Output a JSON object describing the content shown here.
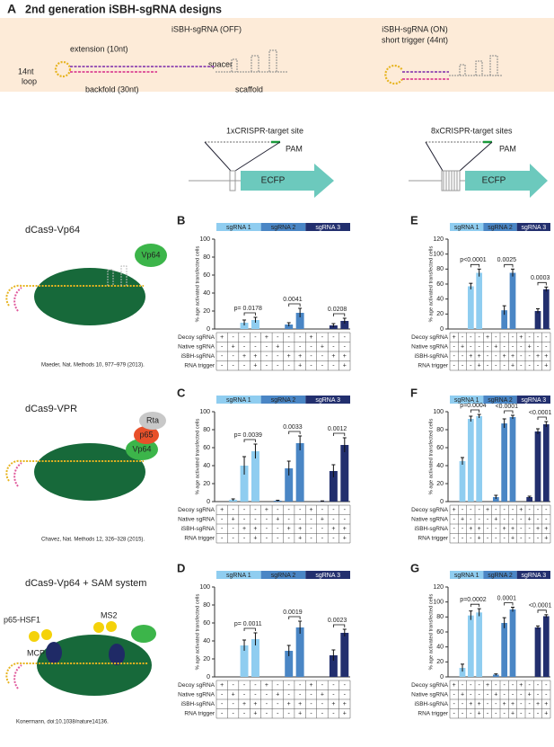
{
  "header": {
    "panel": "A",
    "title": "2nd generation iSBH-sgRNA designs"
  },
  "designs": {
    "off": {
      "title": "iSBH-sgRNA (OFF)",
      "extension": "extension (10nt)",
      "spacer": "spacer",
      "loop": [
        "14nt",
        "loop"
      ],
      "backfold": "backfold (30nt)",
      "scaffold": "scaffold"
    },
    "on": {
      "title": "iSBH-sgRNA (ON)",
      "trigger": "short trigger (44nt)"
    }
  },
  "reporters": [
    {
      "site": "1xCRISPR-target site",
      "pam": "PAM",
      "gene": "ECFP"
    },
    {
      "site": "8xCRISPR-target sites",
      "pam": "PAM",
      "gene": "ECFP"
    }
  ],
  "systems": [
    {
      "name": "dCas9-Vp64",
      "domains": [
        "Vp64"
      ],
      "citation": "Maeder, Nat. Methods 10, 977–979 (2013)."
    },
    {
      "name": "dCas9-VPR",
      "domains": [
        "Rta",
        "p65",
        "Vp64"
      ],
      "citation": "Chavez, Nat. Methods 12, 326–328 (2015)."
    },
    {
      "name": "dCas9-Vp64 + SAM system",
      "domains": [
        "p65-HSF1",
        "MS2",
        "MCP"
      ],
      "citation": "Konermann, doi:10.1038/nature14136."
    }
  ],
  "chart_data": [
    {
      "type": "bar",
      "panel": "B",
      "ylabel": "% age activated transfected cells",
      "ylim": [
        0,
        100
      ],
      "yticks": [
        0,
        20,
        40,
        60,
        80,
        100
      ],
      "series": [
        {
          "name": "sgRNA 1",
          "color": "#8fcdf0",
          "values": [
            0,
            0,
            7,
            10
          ],
          "errors": [
            0,
            0,
            3,
            3
          ]
        },
        {
          "name": "sgRNA 2",
          "color": "#4a86c5",
          "values": [
            0,
            0,
            5,
            18
          ],
          "errors": [
            0,
            0,
            2,
            5
          ]
        },
        {
          "name": "sgRNA 3",
          "color": "#222f6e",
          "values": [
            0,
            0,
            4,
            9
          ],
          "errors": [
            0,
            0,
            2,
            3
          ]
        }
      ],
      "pvalues": [
        "p= 0.0178",
        "0.0041",
        "0.0208"
      ],
      "conditions": [
        {
          "name": "Decoy sgRNA",
          "marks": [
            "+",
            "-",
            "-",
            "-",
            "+",
            "-",
            "-",
            "-",
            "+",
            "-",
            "-",
            "-"
          ]
        },
        {
          "name": "Native sgRNA",
          "marks": [
            "-",
            "+",
            "-",
            "-",
            "-",
            "+",
            "-",
            "-",
            "-",
            "+",
            "-",
            "-"
          ]
        },
        {
          "name": "iSBH-sgRNA",
          "marks": [
            "-",
            "-",
            "+",
            "+",
            "-",
            "-",
            "+",
            "+",
            "-",
            "-",
            "+",
            "+"
          ]
        },
        {
          "name": "RNA trigger",
          "marks": [
            "-",
            "-",
            "-",
            "+",
            "-",
            "-",
            "-",
            "+",
            "-",
            "-",
            "-",
            "+"
          ]
        }
      ]
    },
    {
      "type": "bar",
      "panel": "C",
      "ylabel": "% age activated transfected cells",
      "ylim": [
        0,
        100
      ],
      "yticks": [
        0,
        20,
        40,
        60,
        80,
        100
      ],
      "series": [
        {
          "name": "sgRNA 1",
          "color": "#8fcdf0",
          "values": [
            0,
            2,
            40,
            56
          ],
          "errors": [
            0,
            1,
            10,
            8
          ]
        },
        {
          "name": "sgRNA 2",
          "color": "#4a86c5",
          "values": [
            0,
            1,
            37,
            65
          ],
          "errors": [
            0,
            0.5,
            8,
            8
          ]
        },
        {
          "name": "sgRNA 3",
          "color": "#222f6e",
          "values": [
            0,
            0.5,
            34,
            63
          ],
          "errors": [
            0,
            0.3,
            7,
            8
          ]
        }
      ],
      "pvalues": [
        "p= 0.0039",
        "0.0033",
        "0.0012"
      ],
      "conditions": [
        {
          "name": "Decoy sgRNA",
          "marks": [
            "+",
            "-",
            "-",
            "-",
            "+",
            "-",
            "-",
            "-",
            "+",
            "-",
            "-",
            "-"
          ]
        },
        {
          "name": "Native sgRNA",
          "marks": [
            "-",
            "+",
            "-",
            "-",
            "-",
            "+",
            "-",
            "-",
            "-",
            "+",
            "-",
            "-"
          ]
        },
        {
          "name": "iSBH-sgRNA",
          "marks": [
            "-",
            "-",
            "+",
            "+",
            "-",
            "-",
            "+",
            "+",
            "-",
            "-",
            "+",
            "+"
          ]
        },
        {
          "name": "RNA trigger",
          "marks": [
            "-",
            "-",
            "-",
            "+",
            "-",
            "-",
            "-",
            "+",
            "-",
            "-",
            "-",
            "+"
          ]
        }
      ]
    },
    {
      "type": "bar",
      "panel": "D",
      "ylabel": "% age activated transfected cells",
      "ylim": [
        0,
        100
      ],
      "yticks": [
        0,
        20,
        40,
        60,
        80,
        100
      ],
      "series": [
        {
          "name": "sgRNA 1",
          "color": "#8fcdf0",
          "values": [
            0,
            0,
            35,
            42
          ],
          "errors": [
            0,
            0,
            6,
            7
          ]
        },
        {
          "name": "sgRNA 2",
          "color": "#4a86c5",
          "values": [
            0,
            0,
            29,
            55
          ],
          "errors": [
            0,
            0,
            6,
            7
          ]
        },
        {
          "name": "sgRNA 3",
          "color": "#222f6e",
          "values": [
            0,
            0,
            24,
            49
          ],
          "errors": [
            0,
            0,
            6,
            4
          ]
        }
      ],
      "pvalues": [
        "p= 0.0011",
        "0.0019",
        "0.0023"
      ],
      "conditions": [
        {
          "name": "Decoy sgRNA",
          "marks": [
            "+",
            "-",
            "-",
            "-",
            "+",
            "-",
            "-",
            "-",
            "+",
            "-",
            "-",
            "-"
          ]
        },
        {
          "name": "Native sgRNA",
          "marks": [
            "-",
            "+",
            "-",
            "-",
            "-",
            "+",
            "-",
            "-",
            "-",
            "+",
            "-",
            "-"
          ]
        },
        {
          "name": "iSBH-sgRNA",
          "marks": [
            "-",
            "-",
            "+",
            "+",
            "-",
            "-",
            "+",
            "+",
            "-",
            "-",
            "+",
            "+"
          ]
        },
        {
          "name": "RNA trigger",
          "marks": [
            "-",
            "-",
            "-",
            "+",
            "-",
            "-",
            "-",
            "+",
            "-",
            "-",
            "-",
            "+"
          ]
        }
      ]
    },
    {
      "type": "bar",
      "panel": "E",
      "ylabel": "% age activated transfected cells",
      "ylim": [
        0,
        120
      ],
      "yticks": [
        0,
        20,
        40,
        60,
        80,
        100,
        120
      ],
      "series": [
        {
          "name": "sgRNA 1",
          "color": "#8fcdf0",
          "values": [
            0,
            0,
            57,
            75
          ],
          "errors": [
            0,
            0,
            4,
            5
          ]
        },
        {
          "name": "sgRNA 2",
          "color": "#4a86c5",
          "values": [
            0,
            0,
            25,
            75
          ],
          "errors": [
            0,
            0,
            6,
            5
          ]
        },
        {
          "name": "sgRNA 3",
          "color": "#222f6e",
          "values": [
            0,
            0,
            24,
            53
          ],
          "errors": [
            0,
            0,
            3,
            3
          ]
        }
      ],
      "pvalues": [
        "p<0.0001",
        "0.0025",
        "0.0003"
      ],
      "conditions": [
        {
          "name": "Decoy sgRNA",
          "marks": [
            "+",
            "-",
            "-",
            "-",
            "+",
            "-",
            "-",
            "-",
            "+",
            "-",
            "-",
            "-"
          ]
        },
        {
          "name": "Native sgRNA",
          "marks": [
            "-",
            "+",
            "-",
            "-",
            "-",
            "+",
            "-",
            "-",
            "-",
            "+",
            "-",
            "-"
          ]
        },
        {
          "name": "iSBH-sgRNA",
          "marks": [
            "-",
            "-",
            "+",
            "+",
            "-",
            "-",
            "+",
            "+",
            "-",
            "-",
            "+",
            "+"
          ]
        },
        {
          "name": "RNA trigger",
          "marks": [
            "-",
            "-",
            "-",
            "+",
            "-",
            "-",
            "-",
            "+",
            "-",
            "-",
            "-",
            "+"
          ]
        }
      ]
    },
    {
      "type": "bar",
      "panel": "F",
      "ylabel": "% age activated transfected cells",
      "ylim": [
        0,
        100
      ],
      "yticks": [
        0,
        20,
        40,
        60,
        80,
        100
      ],
      "series": [
        {
          "name": "sgRNA 1",
          "color": "#8fcdf0",
          "values": [
            0,
            45,
            92,
            95
          ],
          "errors": [
            0,
            4,
            3,
            2
          ]
        },
        {
          "name": "sgRNA 2",
          "color": "#4a86c5",
          "values": [
            0,
            5,
            87,
            94
          ],
          "errors": [
            0,
            2,
            5,
            2
          ]
        },
        {
          "name": "sgRNA 3",
          "color": "#222f6e",
          "values": [
            0,
            5,
            78,
            86
          ],
          "errors": [
            0,
            1,
            3,
            3
          ]
        }
      ],
      "pvalues": [
        "p=0.0004",
        "<0.0001",
        "<0.0001"
      ],
      "conditions": [
        {
          "name": "Decoy sgRNA",
          "marks": [
            "+",
            "-",
            "-",
            "-",
            "+",
            "-",
            "-",
            "-",
            "+",
            "-",
            "-",
            "-"
          ]
        },
        {
          "name": "Native sgRNA",
          "marks": [
            "-",
            "+",
            "-",
            "-",
            "-",
            "+",
            "-",
            "-",
            "-",
            "+",
            "-",
            "-"
          ]
        },
        {
          "name": "iSBH-sgRNA",
          "marks": [
            "-",
            "-",
            "+",
            "+",
            "-",
            "-",
            "+",
            "+",
            "-",
            "-",
            "+",
            "+"
          ]
        },
        {
          "name": "RNA trigger",
          "marks": [
            "-",
            "-",
            "-",
            "+",
            "-",
            "-",
            "-",
            "+",
            "-",
            "-",
            "-",
            "+"
          ]
        }
      ]
    },
    {
      "type": "bar",
      "panel": "G",
      "ylabel": "% age activated transfected cells",
      "ylim": [
        0,
        120
      ],
      "yticks": [
        0,
        20,
        40,
        60,
        80,
        100,
        120
      ],
      "series": [
        {
          "name": "sgRNA 1",
          "color": "#8fcdf0",
          "values": [
            0,
            12,
            82,
            86
          ],
          "errors": [
            0,
            5,
            6,
            5
          ]
        },
        {
          "name": "sgRNA 2",
          "color": "#4a86c5",
          "values": [
            0,
            3,
            72,
            90
          ],
          "errors": [
            0,
            1,
            7,
            3
          ]
        },
        {
          "name": "sgRNA 3",
          "color": "#222f6e",
          "values": [
            0,
            0,
            66,
            81
          ],
          "errors": [
            0,
            0,
            2,
            2
          ]
        }
      ],
      "pvalues": [
        "p=0.0002",
        "0.0001",
        "<0.0001"
      ],
      "conditions": [
        {
          "name": "Decoy sgRNA",
          "marks": [
            "+",
            "-",
            "-",
            "-",
            "+",
            "-",
            "-",
            "-",
            "+",
            "-",
            "-",
            "-"
          ]
        },
        {
          "name": "Native sgRNA",
          "marks": [
            "-",
            "+",
            "-",
            "-",
            "-",
            "+",
            "-",
            "-",
            "-",
            "+",
            "-",
            "-"
          ]
        },
        {
          "name": "iSBH-sgRNA",
          "marks": [
            "-",
            "-",
            "+",
            "+",
            "-",
            "-",
            "+",
            "+",
            "-",
            "-",
            "+",
            "+"
          ]
        },
        {
          "name": "RNA trigger",
          "marks": [
            "-",
            "-",
            "-",
            "+",
            "-",
            "-",
            "-",
            "+",
            "-",
            "-",
            "-",
            "+"
          ]
        }
      ]
    }
  ]
}
